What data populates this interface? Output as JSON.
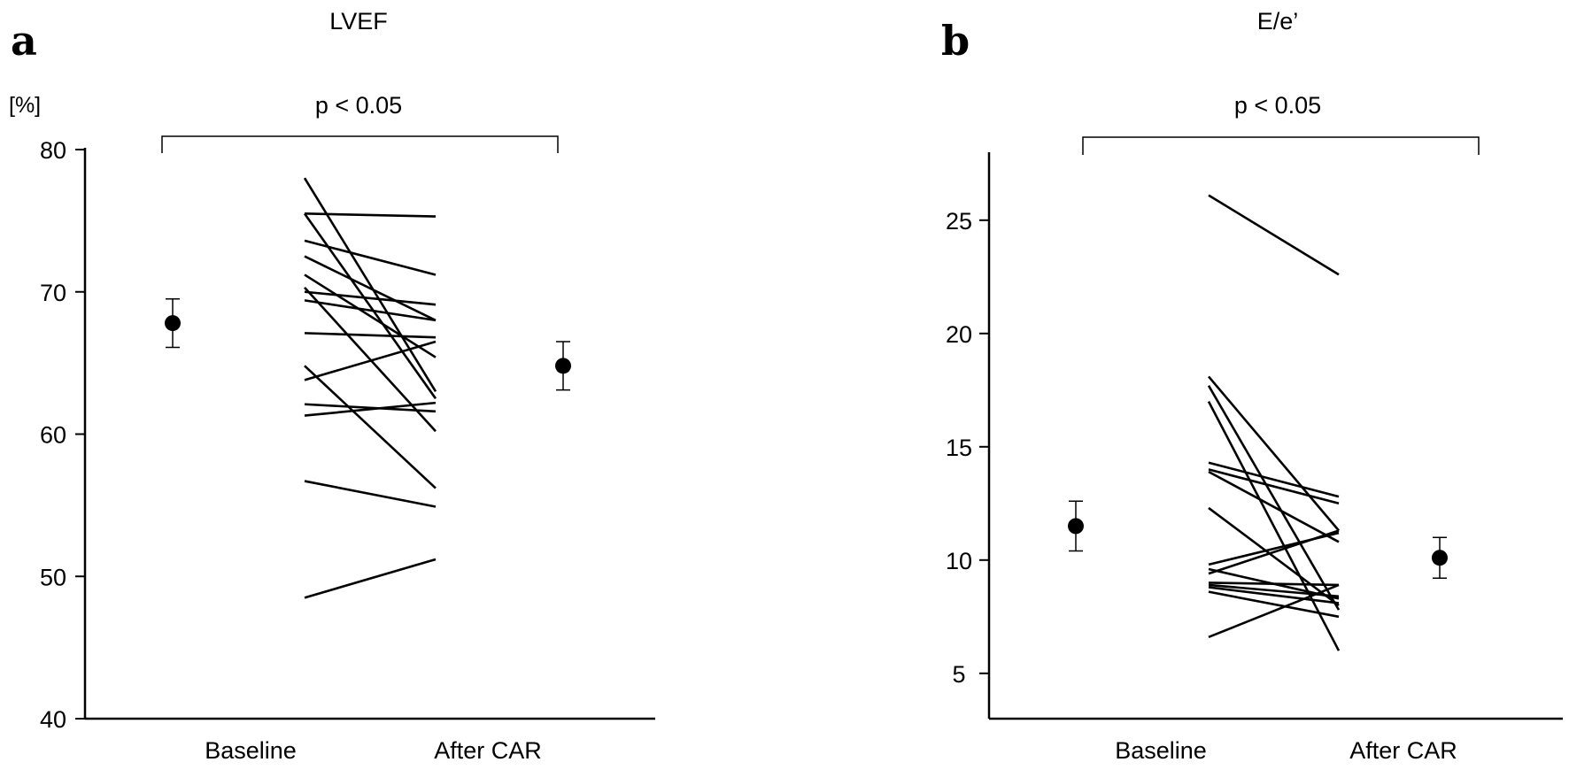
{
  "chart_data": [
    {
      "panel_label": "a",
      "type": "line",
      "title": "LVEF",
      "ylabel": "[%]",
      "ylim": [
        40,
        80
      ],
      "yticks": [
        40,
        50,
        60,
        70,
        80
      ],
      "categories": [
        "Baseline",
        "After CAR"
      ],
      "significance": "p < 0.05",
      "subjects": [
        [
          78.0,
          63.0
        ],
        [
          75.5,
          75.3
        ],
        [
          75.5,
          62.5
        ],
        [
          73.6,
          71.2
        ],
        [
          72.5,
          68.0
        ],
        [
          71.2,
          65.4
        ],
        [
          70.3,
          60.2
        ],
        [
          70.0,
          69.1
        ],
        [
          69.4,
          68.0
        ],
        [
          67.1,
          66.8
        ],
        [
          64.8,
          56.2
        ],
        [
          63.8,
          66.5
        ],
        [
          62.1,
          61.6
        ],
        [
          61.3,
          62.2
        ],
        [
          56.7,
          54.9
        ],
        [
          48.5,
          51.2
        ]
      ],
      "means": [
        {
          "category": "Baseline",
          "mean": 67.8,
          "lower": 66.1,
          "upper": 69.5
        },
        {
          "category": "After CAR",
          "mean": 64.8,
          "lower": 63.1,
          "upper": 66.5
        }
      ]
    },
    {
      "panel_label": "b",
      "type": "line",
      "title": "E/e’",
      "ylabel": "",
      "ylim": [
        3,
        28
      ],
      "yticks": [
        5,
        10,
        15,
        20,
        25
      ],
      "categories": [
        "Baseline",
        "After CAR"
      ],
      "significance": "p < 0.05",
      "subjects": [
        [
          26.1,
          22.6
        ],
        [
          18.1,
          11.3
        ],
        [
          17.7,
          7.8
        ],
        [
          17.0,
          6.0
        ],
        [
          14.3,
          12.8
        ],
        [
          14.0,
          12.5
        ],
        [
          13.9,
          10.8
        ],
        [
          12.3,
          8.0
        ],
        [
          9.8,
          11.2
        ],
        [
          9.6,
          8.3
        ],
        [
          9.4,
          11.3
        ],
        [
          9.0,
          8.9
        ],
        [
          8.9,
          8.4
        ],
        [
          8.8,
          8.1
        ],
        [
          8.6,
          7.5
        ],
        [
          6.6,
          8.9
        ]
      ],
      "means": [
        {
          "category": "Baseline",
          "mean": 11.5,
          "lower": 10.4,
          "upper": 12.6
        },
        {
          "category": "After CAR",
          "mean": 10.1,
          "lower": 9.2,
          "upper": 11.0
        }
      ]
    }
  ]
}
